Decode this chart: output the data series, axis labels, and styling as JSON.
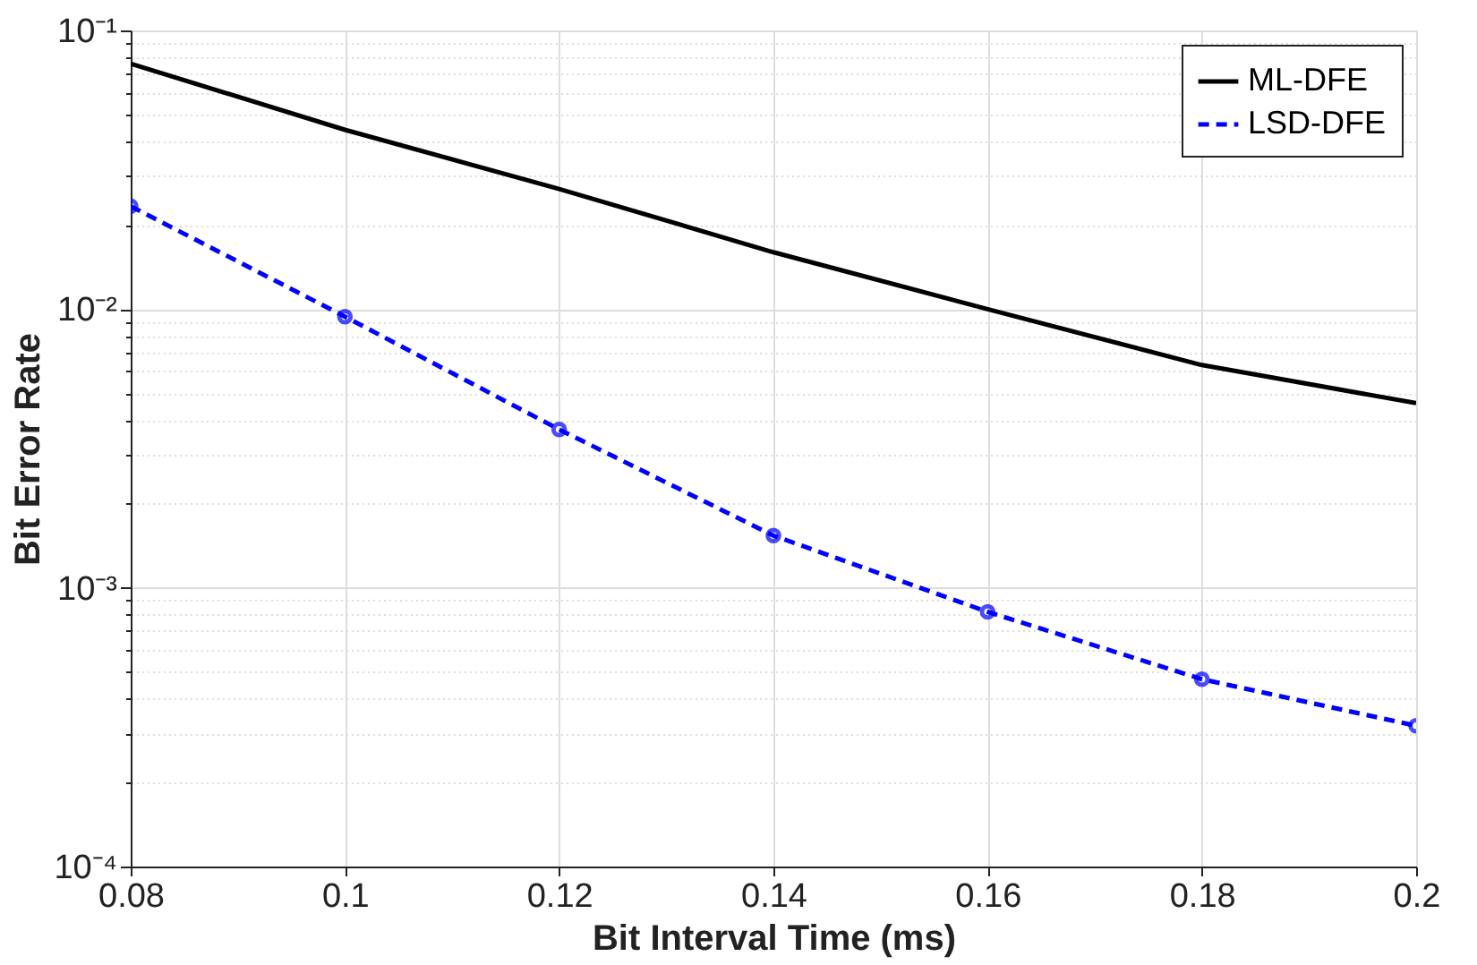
{
  "chart_data": {
    "type": "line",
    "xlabel": "Bit Interval Time (ms)",
    "ylabel": "Bit Error Rate",
    "x": [
      0.08,
      0.1,
      0.12,
      0.14,
      0.16,
      0.18,
      0.2
    ],
    "series": [
      {
        "name": "ML-DFE",
        "color": "#000000",
        "values": [
          0.076,
          0.044,
          0.027,
          0.016,
          0.01,
          0.0063,
          0.0046
        ],
        "marker": "none",
        "line_style": "solid"
      },
      {
        "name": "LSD-DFE",
        "color": "#0000ff",
        "values": [
          0.0234,
          0.0094,
          0.0037,
          0.00154,
          0.00082,
          0.00047,
          0.00032
        ],
        "marker": "circle",
        "line_style": "dashed"
      }
    ],
    "log": "y",
    "xlim": [
      0.08,
      0.2
    ],
    "xticks": [
      0.08,
      0.1,
      0.12,
      0.14,
      0.16,
      0.18,
      0.2
    ],
    "ylim": [
      0.0001,
      0.1
    ],
    "yticks": [
      {
        "value": 0.0001,
        "label": "10⁻⁴"
      },
      {
        "value": 0.001,
        "label": "10⁻³"
      },
      {
        "value": 0.01,
        "label": "10⁻²"
      },
      {
        "value": 0.1,
        "label": "10⁻¹"
      }
    ],
    "grid": true,
    "legend": "top right"
  }
}
